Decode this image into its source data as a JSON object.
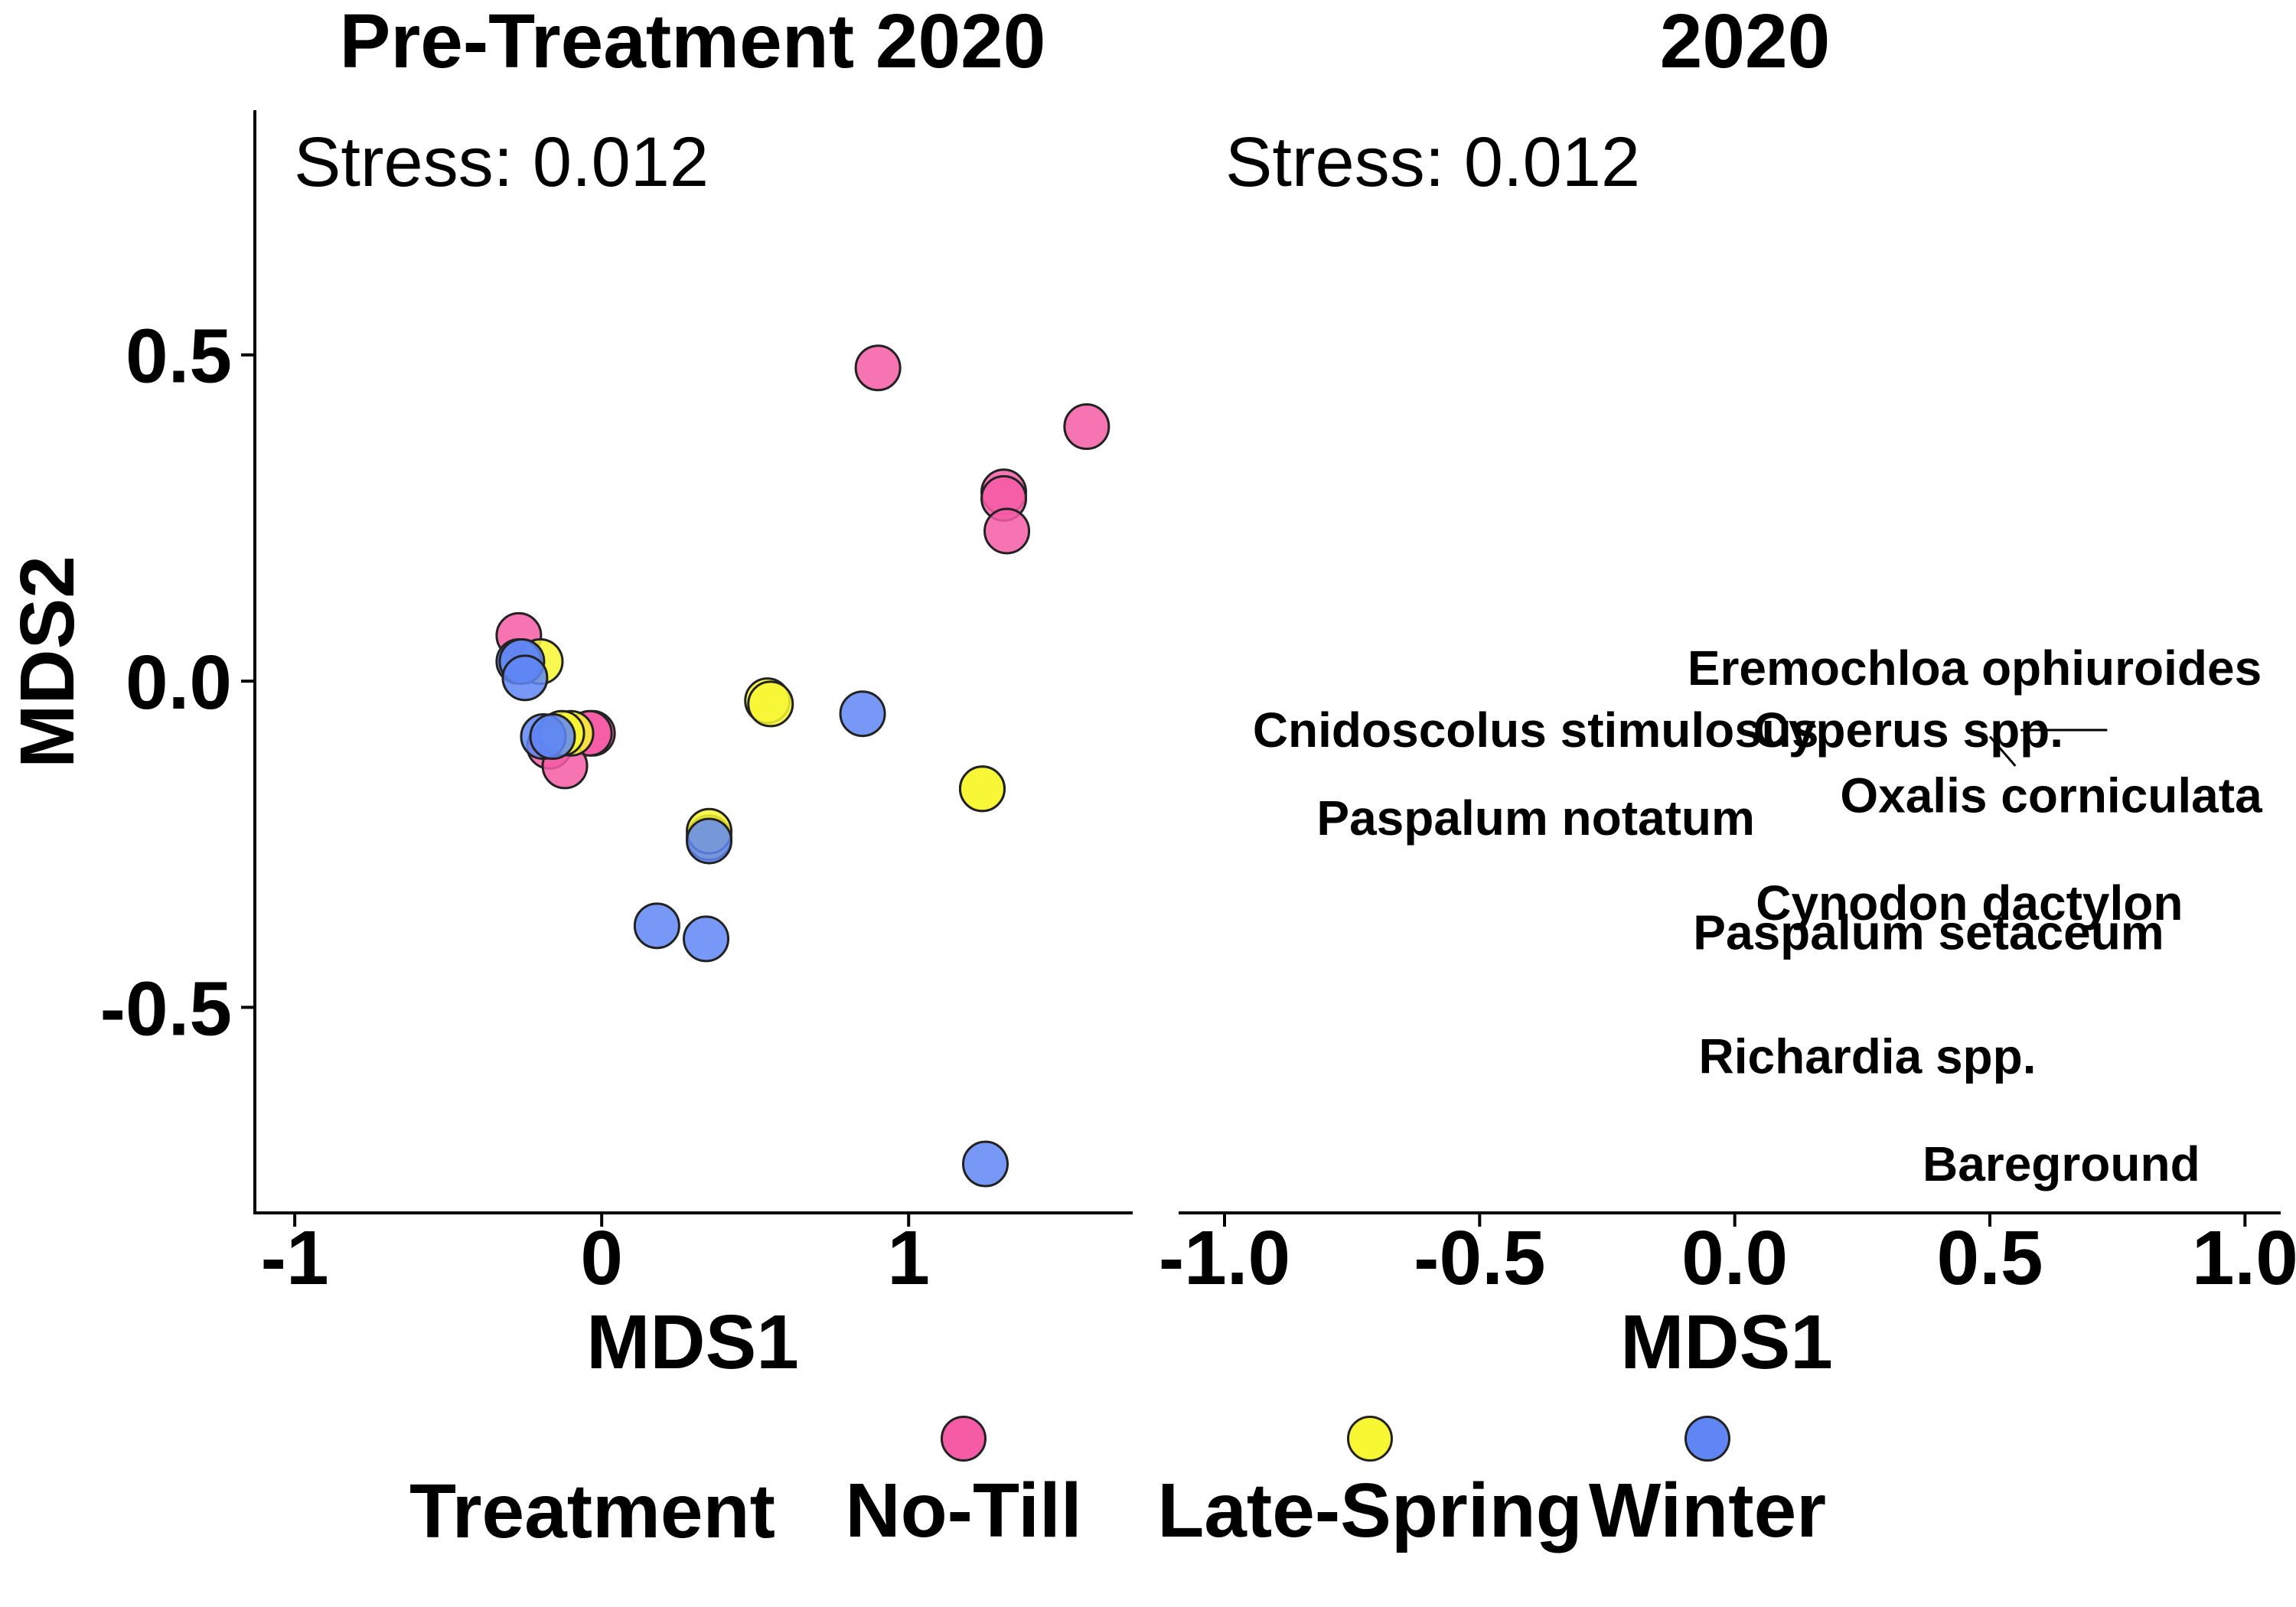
{
  "figure": {
    "panel_left_title": "Pre-Treatment 2020",
    "panel_right_title": "2020",
    "stress_left": "Stress: 0.012",
    "stress_right": "Stress: 0.012",
    "legend_title": "Treatment"
  },
  "colors": {
    "No-Till": "#f65ca6",
    "Late-Spring": "#f7f733",
    "Winter": "#5f86f4",
    "outline": "#222222"
  },
  "chart_data": [
    {
      "type": "scatter",
      "title": "Pre-Treatment 2020",
      "xlabel": "MDS1",
      "ylabel": "MDS2",
      "xlim": [
        -1.13,
        1.73
      ],
      "ylim": [
        -0.815,
        0.875
      ],
      "xticks": [
        -1,
        0,
        1
      ],
      "xtick_labels": [
        "-1",
        "0",
        "1"
      ],
      "yticks": [
        0.5,
        0.0,
        -0.5
      ],
      "ytick_labels": [
        "0.5",
        "0.0",
        "-0.5"
      ],
      "grid": false,
      "annotation": "Stress: 0.012",
      "series": [
        {
          "name": "No-Till",
          "points": [
            [
              0.9,
              0.48
            ],
            [
              1.58,
              0.39
            ],
            [
              1.31,
              0.29
            ],
            [
              1.31,
              0.28
            ],
            [
              1.32,
              0.23
            ],
            [
              -0.27,
              0.07
            ],
            [
              -0.03,
              -0.08
            ],
            [
              -0.04,
              -0.08
            ],
            [
              -0.17,
              -0.1
            ],
            [
              -0.12,
              -0.13
            ]
          ]
        },
        {
          "name": "Late-Spring",
          "points": [
            [
              -0.2,
              0.03
            ],
            [
              0.54,
              -0.03
            ],
            [
              0.55,
              -0.035
            ],
            [
              1.24,
              -0.165
            ],
            [
              1.24,
              -0.165
            ],
            [
              0.35,
              -0.24
            ],
            [
              0.35,
              -0.23
            ],
            [
              -0.1,
              -0.08
            ],
            [
              -0.13,
              -0.08
            ]
          ]
        },
        {
          "name": "Winter",
          "points": [
            [
              -0.27,
              0.03
            ],
            [
              -0.26,
              0.03
            ],
            [
              -0.25,
              0.005
            ],
            [
              0.85,
              -0.05
            ],
            [
              -0.19,
              -0.085
            ],
            [
              -0.16,
              -0.085
            ],
            [
              0.18,
              -0.375
            ],
            [
              0.34,
              -0.395
            ],
            [
              0.35,
              -0.245
            ],
            [
              1.25,
              -0.74
            ]
          ]
        }
      ]
    },
    {
      "type": "scatter",
      "title": "2020",
      "xlabel": "MDS1",
      "xlim": [
        -1.09,
        1.07
      ],
      "ylim": [
        -0.815,
        0.875
      ],
      "xticks": [
        -1.0,
        -0.5,
        0.0,
        0.5,
        1.0
      ],
      "xtick_labels": [
        "-1.0",
        "-0.5",
        "0.0",
        "0.5",
        "1.0"
      ],
      "grid": false,
      "annotation": "Stress: 0.012",
      "text_labels": [
        {
          "text": "Eremochloa ophiuroides",
          "x": 0.47,
          "y": 0.02
        },
        {
          "text": "Cnidoscolus stimulosus",
          "x": -0.39,
          "y": -0.075
        },
        {
          "text": "Cyperus spp.",
          "x": 0.34,
          "y": -0.075
        },
        {
          "text": "Oxalis corniculata",
          "x": 0.62,
          "y": -0.175
        },
        {
          "text": "Paspalum notatum",
          "x": -0.39,
          "y": -0.21
        },
        {
          "text": "Cynodon dactylon",
          "x": 0.46,
          "y": -0.34
        },
        {
          "text": "Paspalum setaceum",
          "x": 0.38,
          "y": -0.385
        },
        {
          "text": "Richardia spp.",
          "x": 0.26,
          "y": -0.575
        },
        {
          "text": "Bareground",
          "x": 0.64,
          "y": -0.74
        }
      ],
      "segments": [
        {
          "x1": 0.56,
          "y1": -0.075,
          "x2": 0.73,
          "y2": -0.075
        },
        {
          "x1": 0.5,
          "y1": -0.085,
          "x2": 0.55,
          "y2": -0.13
        }
      ]
    }
  ],
  "legend": {
    "title": "Treatment",
    "items": [
      "No-Till",
      "Late-Spring",
      "Winter"
    ]
  }
}
